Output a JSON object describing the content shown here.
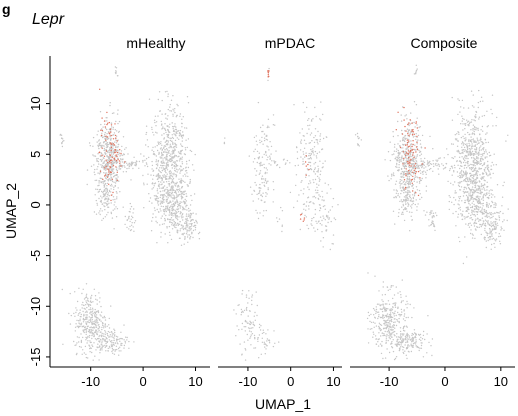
{
  "panel_letter": "g",
  "chart_data": {
    "type": "scatter",
    "gene_label": "Lepr",
    "xlabel": "UMAP_1",
    "ylabel": "UMAP_2",
    "xlim": [
      -17,
      12
    ],
    "ylim": [
      -15.5,
      14.5
    ],
    "x_ticks": [
      -10,
      0,
      10
    ],
    "y_ticks": [
      10,
      5,
      0,
      -5,
      -10,
      -15
    ],
    "grid": false,
    "legend": "none",
    "point_colors": {
      "low": "#c6c6c6",
      "high": "#e0735e"
    },
    "panels": [
      {
        "title": "mHealthy",
        "density": 1.0,
        "clusters": [
          {
            "cx": -6.5,
            "cy": 4.5,
            "sx": 1.3,
            "sy": 2.0,
            "n": 420
          },
          {
            "cx": -7.0,
            "cy": 1.0,
            "sx": 1.0,
            "sy": 1.2,
            "n": 120
          },
          {
            "cx": -2.5,
            "cy": 4.0,
            "sx": 1.8,
            "sy": 0.3,
            "n": 60
          },
          {
            "cx": 5.0,
            "cy": 4.0,
            "sx": 1.8,
            "sy": 2.8,
            "n": 700
          },
          {
            "cx": 6.0,
            "cy": -0.5,
            "sx": 2.0,
            "sy": 1.2,
            "n": 220
          },
          {
            "cx": 8.5,
            "cy": -2.5,
            "sx": 0.8,
            "sy": 0.8,
            "n": 80
          },
          {
            "cx": -2.5,
            "cy": -1.5,
            "sx": 0.5,
            "sy": 0.8,
            "n": 30
          },
          {
            "cx": -10.0,
            "cy": -11.5,
            "sx": 1.6,
            "sy": 1.5,
            "n": 320
          },
          {
            "cx": -6.5,
            "cy": -13.5,
            "sx": 1.8,
            "sy": 0.6,
            "n": 150
          },
          {
            "cx": -15.5,
            "cy": 6.5,
            "sx": 0.2,
            "sy": 0.4,
            "n": 12
          },
          {
            "cx": -5.2,
            "cy": 13.0,
            "sx": 0.15,
            "sy": 0.4,
            "n": 8
          }
        ],
        "high_region": {
          "cx": -6.3,
          "cy": 5.0,
          "sx": 1.0,
          "sy": 1.8,
          "n": 90
        }
      },
      {
        "title": "mPDAC",
        "density": 0.25,
        "clusters": [
          {
            "cx": -6.5,
            "cy": 4.5,
            "sx": 1.3,
            "sy": 2.0,
            "n": 420
          },
          {
            "cx": -7.0,
            "cy": 1.0,
            "sx": 1.0,
            "sy": 1.2,
            "n": 120
          },
          {
            "cx": -2.5,
            "cy": 4.0,
            "sx": 1.8,
            "sy": 0.3,
            "n": 60
          },
          {
            "cx": 5.0,
            "cy": 4.0,
            "sx": 1.8,
            "sy": 2.8,
            "n": 700
          },
          {
            "cx": 6.0,
            "cy": -0.5,
            "sx": 2.0,
            "sy": 1.2,
            "n": 220
          },
          {
            "cx": 8.5,
            "cy": -2.5,
            "sx": 0.8,
            "sy": 0.8,
            "n": 80
          },
          {
            "cx": -2.5,
            "cy": -1.5,
            "sx": 0.5,
            "sy": 0.8,
            "n": 30
          },
          {
            "cx": -10.0,
            "cy": -11.5,
            "sx": 1.6,
            "sy": 1.5,
            "n": 320
          },
          {
            "cx": -6.5,
            "cy": -13.5,
            "sx": 1.8,
            "sy": 0.6,
            "n": 150
          },
          {
            "cx": -15.5,
            "cy": 6.5,
            "sx": 0.2,
            "sy": 0.4,
            "n": 12
          },
          {
            "cx": -5.2,
            "cy": 13.0,
            "sx": 0.15,
            "sy": 0.4,
            "n": 8
          }
        ],
        "high_region": {
          "cx": -5.2,
          "cy": 13.0,
          "sx": 0.15,
          "sy": 0.4,
          "n": 8
        },
        "extra_high": [
          {
            "cx": 2.5,
            "cy": -1.5,
            "sx": 0.4,
            "sy": 0.3,
            "n": 6
          },
          {
            "cx": 4.0,
            "cy": 4.0,
            "sx": 0.4,
            "sy": 0.5,
            "n": 6
          }
        ]
      },
      {
        "title": "Composite",
        "density": 1.0,
        "clusters": [
          {
            "cx": -6.5,
            "cy": 4.5,
            "sx": 1.3,
            "sy": 2.0,
            "n": 420
          },
          {
            "cx": -7.0,
            "cy": 1.0,
            "sx": 1.0,
            "sy": 1.2,
            "n": 120
          },
          {
            "cx": -2.5,
            "cy": 4.0,
            "sx": 1.8,
            "sy": 0.3,
            "n": 60
          },
          {
            "cx": 5.0,
            "cy": 4.0,
            "sx": 1.8,
            "sy": 2.8,
            "n": 700
          },
          {
            "cx": 6.0,
            "cy": -0.5,
            "sx": 2.0,
            "sy": 1.2,
            "n": 220
          },
          {
            "cx": 8.5,
            "cy": -2.5,
            "sx": 0.8,
            "sy": 0.8,
            "n": 80
          },
          {
            "cx": -2.5,
            "cy": -1.5,
            "sx": 0.5,
            "sy": 0.8,
            "n": 30
          },
          {
            "cx": -10.0,
            "cy": -11.5,
            "sx": 1.6,
            "sy": 1.5,
            "n": 320
          },
          {
            "cx": -6.5,
            "cy": -13.5,
            "sx": 1.8,
            "sy": 0.6,
            "n": 150
          },
          {
            "cx": -15.5,
            "cy": 6.5,
            "sx": 0.2,
            "sy": 0.4,
            "n": 12
          },
          {
            "cx": -5.2,
            "cy": 13.0,
            "sx": 0.15,
            "sy": 0.4,
            "n": 8
          }
        ],
        "high_region": {
          "cx": -6.3,
          "cy": 5.0,
          "sx": 1.0,
          "sy": 1.8,
          "n": 90
        }
      }
    ]
  }
}
